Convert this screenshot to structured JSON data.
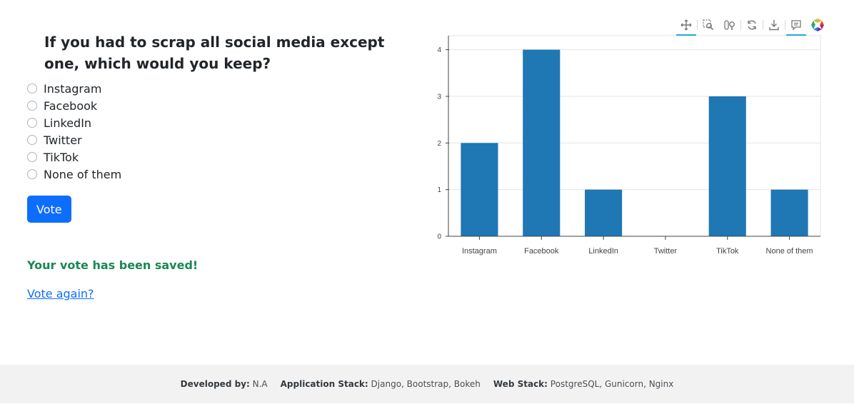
{
  "poll": {
    "question": "If you had to scrap all social media except one, which would you keep?",
    "choices": [
      "Instagram",
      "Facebook",
      "LinkedIn",
      "Twitter",
      "TikTok",
      "None of them"
    ],
    "vote_label": "Vote",
    "saved_message": "Your vote has been saved!",
    "vote_again_label": "Vote again?"
  },
  "toolbar": {
    "tools": [
      "pan-icon",
      "box-zoom-icon",
      "wheel-zoom-icon",
      "reset-icon",
      "save-icon",
      "hover-icon",
      "bokeh-logo-icon"
    ]
  },
  "chart_data": {
    "type": "bar",
    "categories": [
      "Instagram",
      "Facebook",
      "LinkedIn",
      "Twitter",
      "TikTok",
      "None of them"
    ],
    "values": [
      2,
      4,
      1,
      0,
      3,
      1
    ],
    "title": "",
    "xlabel": "",
    "ylabel": "",
    "ylim": [
      0,
      4.3
    ],
    "yticks": [
      0,
      1,
      2,
      3,
      4
    ],
    "grid": true,
    "bar_color": "#1f77b4"
  },
  "footer": {
    "developed_label": "Developed by:",
    "developed_value": "N.A",
    "app_stack_label": "Application Stack:",
    "app_stack_value": "Django, Bootstrap, Bokeh",
    "web_stack_label": "Web Stack:",
    "web_stack_value": "PostgreSQL, Gunicorn, Nginx"
  },
  "colors": {
    "primary": "#0d6efd",
    "success": "#198754",
    "bar": "#1f77b4",
    "toolbar_active": "#26aae1"
  }
}
